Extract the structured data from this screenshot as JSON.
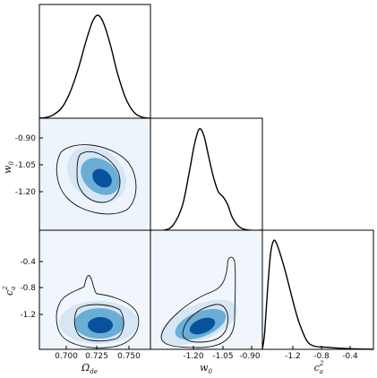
{
  "chart_data": {
    "type": "corner",
    "parameters": [
      {
        "label": "Ω",
        "sub": "de",
        "sup": "",
        "ticks": [
          "0.700",
          "0.725",
          "0.750"
        ],
        "range": [
          0.682,
          0.762
        ],
        "tick_values": [
          0.7,
          0.725,
          0.75
        ]
      },
      {
        "label": "w",
        "sub": "0",
        "sup": "",
        "ticks": [
          "-1.20",
          "-1.05",
          "-0.90"
        ],
        "range": [
          -1.335,
          -0.865
        ],
        "tick_values": [
          -1.2,
          -1.05,
          -0.9
        ]
      },
      {
        "label": "c",
        "sub": "a",
        "sup": "2",
        "ticks": [
          "-1.2",
          "-0.8",
          "-0.4"
        ],
        "range": [
          -1.55,
          -0.05
        ],
        "tick_values": [
          -1.2,
          -0.8,
          -0.4
        ]
      }
    ],
    "marginals": [
      {
        "param": 0,
        "x": [
          0.682,
          0.69,
          0.698,
          0.704,
          0.71,
          0.715,
          0.72,
          0.724,
          0.728,
          0.733,
          0.738,
          0.744,
          0.75,
          0.756,
          0.762
        ],
        "density": [
          0.0,
          0.02,
          0.1,
          0.25,
          0.48,
          0.72,
          0.93,
          1.0,
          0.93,
          0.72,
          0.45,
          0.2,
          0.06,
          0.01,
          0.0
        ]
      },
      {
        "param": 1,
        "x": [
          -1.335,
          -1.28,
          -1.24,
          -1.2,
          -1.17,
          -1.15,
          -1.13,
          -1.11,
          -1.09,
          -1.07,
          -1.05,
          -1.03,
          -1.01,
          -0.99,
          -0.96,
          -0.92,
          -0.865
        ],
        "density": [
          0.0,
          0.0,
          0.05,
          0.25,
          0.6,
          0.85,
          1.0,
          0.93,
          0.72,
          0.52,
          0.38,
          0.33,
          0.25,
          0.12,
          0.03,
          0.0,
          0.0
        ]
      },
      {
        "param": 2,
        "x": [
          -1.55,
          -1.52,
          -1.48,
          -1.44,
          -1.4,
          -1.36,
          -1.3,
          -1.24,
          -1.18,
          -1.12,
          -1.05,
          -0.95,
          -0.85,
          -0.7,
          -0.5,
          -0.3,
          -0.05
        ],
        "density": [
          0.0,
          0.15,
          0.55,
          0.88,
          1.0,
          0.98,
          0.86,
          0.72,
          0.56,
          0.4,
          0.24,
          0.08,
          0.03,
          0.02,
          0.01,
          0.005,
          0.0
        ]
      }
    ],
    "joint": [
      {
        "x_param": 0,
        "y_param": 1,
        "center": [
          0.7255,
          -1.155
        ],
        "correlation": "negative"
      },
      {
        "x_param": 0,
        "y_param": 2,
        "center": [
          0.7255,
          -1.3
        ],
        "correlation": "none"
      },
      {
        "x_param": 1,
        "y_param": 2,
        "center": [
          -1.13,
          -1.3
        ],
        "correlation": "positive"
      }
    ],
    "contour_levels": [
      "68%",
      "95%"
    ],
    "fill_color": "#2370b5"
  }
}
